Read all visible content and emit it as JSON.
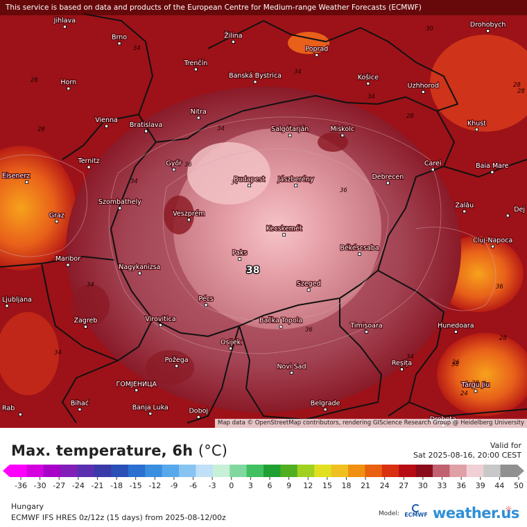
{
  "banner": "This service is based on data and products of the European Centre for Medium-range Weather Forecasts (ECMWF)",
  "attribution": "Map data © OpenStreetMap contributors, rendering GIScience Research Group @ Heidelberg University",
  "cities": [
    {
      "name": "Jihlava",
      "lon": 15.59,
      "lat": 49.4
    },
    {
      "name": "Brno",
      "lon": 16.61,
      "lat": 49.2
    },
    {
      "name": "Žilina",
      "lon": 18.74,
      "lat": 49.22
    },
    {
      "name": "Poprad",
      "lon": 20.3,
      "lat": 49.06
    },
    {
      "name": "Drohobych",
      "lon": 23.5,
      "lat": 49.35
    },
    {
      "name": "Trenčín",
      "lon": 18.04,
      "lat": 48.89
    },
    {
      "name": "Banská Bystrica",
      "lon": 19.15,
      "lat": 48.74
    },
    {
      "name": "Košice",
      "lon": 21.26,
      "lat": 48.72
    },
    {
      "name": "Uzhhorod",
      "lon": 22.29,
      "lat": 48.62
    },
    {
      "name": "Horn",
      "lon": 15.66,
      "lat": 48.66
    },
    {
      "name": "Nitra",
      "lon": 18.09,
      "lat": 48.31
    },
    {
      "name": "Vienna",
      "lon": 16.37,
      "lat": 48.21
    },
    {
      "name": "Bratislava",
      "lon": 17.11,
      "lat": 48.15
    },
    {
      "name": "Salgótarján",
      "lon": 19.8,
      "lat": 48.1
    },
    {
      "name": "Miskolc",
      "lon": 20.78,
      "lat": 48.1
    },
    {
      "name": "Khust",
      "lon": 23.29,
      "lat": 48.17
    },
    {
      "name": "Ternitz",
      "lon": 16.04,
      "lat": 47.72
    },
    {
      "name": "Győr",
      "lon": 17.63,
      "lat": 47.69
    },
    {
      "name": "Carei",
      "lon": 22.47,
      "lat": 47.69
    },
    {
      "name": "Baia Mare",
      "lon": 23.58,
      "lat": 47.66
    },
    {
      "name": "Eisenerz",
      "lon": 14.88,
      "lat": 47.54
    },
    {
      "name": "Budapest",
      "lon": 19.04,
      "lat": 47.5
    },
    {
      "name": "Jászberény",
      "lon": 19.91,
      "lat": 47.5
    },
    {
      "name": "Debrecen",
      "lon": 21.63,
      "lat": 47.53
    },
    {
      "name": "Szombathely",
      "lon": 16.62,
      "lat": 47.23
    },
    {
      "name": "Zalău",
      "lon": 23.06,
      "lat": 47.19
    },
    {
      "name": "Graz",
      "lon": 15.44,
      "lat": 47.07
    },
    {
      "name": "Veszprém",
      "lon": 17.91,
      "lat": 47.09
    },
    {
      "name": "Dej",
      "lon": 23.87,
      "lat": 47.14
    },
    {
      "name": "Kecskemét",
      "lon": 19.69,
      "lat": 46.91
    },
    {
      "name": "Cluj-Napoca",
      "lon": 23.59,
      "lat": 46.77
    },
    {
      "name": "Maribor",
      "lon": 15.65,
      "lat": 46.55
    },
    {
      "name": "Paks",
      "lon": 18.86,
      "lat": 46.62
    },
    {
      "name": "Békéscsaba",
      "lon": 21.1,
      "lat": 46.68
    },
    {
      "name": "Nagykanizsa",
      "lon": 16.99,
      "lat": 46.45
    },
    {
      "name": "Szeged",
      "lon": 20.15,
      "lat": 46.25
    },
    {
      "name": "Ljubljana",
      "lon": 14.51,
      "lat": 46.06
    },
    {
      "name": "Pécs",
      "lon": 18.23,
      "lat": 46.07
    },
    {
      "name": "Virovitica",
      "lon": 17.38,
      "lat": 45.83
    },
    {
      "name": "Zagreb",
      "lon": 15.98,
      "lat": 45.81
    },
    {
      "name": "Bačka Topola",
      "lon": 19.63,
      "lat": 45.81
    },
    {
      "name": "Hunedoara",
      "lon": 22.9,
      "lat": 45.75
    },
    {
      "name": "Timișoara",
      "lon": 21.23,
      "lat": 45.75
    },
    {
      "name": "Osijek",
      "lon": 18.69,
      "lat": 45.55
    },
    {
      "name": "Požega",
      "lon": 17.68,
      "lat": 45.34
    },
    {
      "name": "Reșița",
      "lon": 21.89,
      "lat": 45.3
    },
    {
      "name": "Novi Sad",
      "lon": 19.83,
      "lat": 45.26
    },
    {
      "name": "Târgu Jiu",
      "lon": 23.27,
      "lat": 45.04
    },
    {
      "name": "ГОМЈЕНИЦА",
      "lon": 16.93,
      "lat": 45.05
    },
    {
      "name": "Belgrade",
      "lon": 20.46,
      "lat": 44.82
    },
    {
      "name": "Bihać",
      "lon": 15.87,
      "lat": 44.82
    },
    {
      "name": "Banja Luka",
      "lon": 17.19,
      "lat": 44.77
    },
    {
      "name": "Doboj",
      "lon": 18.09,
      "lat": 44.73
    },
    {
      "name": "Drobeta",
      "lon": 22.66,
      "lat": 44.63
    },
    {
      "name": "Rab",
      "lon": 14.76,
      "lat": 44.76
    }
  ],
  "contour_labels": [
    "30",
    "34",
    "34",
    "28",
    "28",
    "34",
    "28",
    "28",
    "34",
    "34",
    "36",
    "36",
    "34",
    "34",
    "36",
    "34",
    "36",
    "36",
    "28",
    "28",
    "24",
    "26",
    "34",
    "28"
  ],
  "max_value_label": "38",
  "legend": {
    "title": "Max. temperature, 6h",
    "unit": "(°C)",
    "valid_label": "Valid for",
    "valid_time": "Sat 2025-08-16, 20:00 CEST",
    "ticks": [
      "-36",
      "-30",
      "-27",
      "-24",
      "-21",
      "-18",
      "-15",
      "-12",
      "-9",
      "-6",
      "-3",
      "0",
      "3",
      "6",
      "9",
      "12",
      "15",
      "18",
      "21",
      "24",
      "27",
      "30",
      "33",
      "36",
      "39",
      "44",
      "50"
    ],
    "colors": [
      "#ff00ff",
      "#d400e0",
      "#a800c8",
      "#8020b8",
      "#5a30b0",
      "#3a3aa8",
      "#2a50b8",
      "#2b6fd0",
      "#3a8ee0",
      "#58a8ec",
      "#88c4f2",
      "#bfe0f7",
      "#c8f0d8",
      "#80d8a0",
      "#40c060",
      "#20a030",
      "#50b020",
      "#a0d020",
      "#e0e020",
      "#f0c020",
      "#f09010",
      "#e86010",
      "#d83010",
      "#b80c14",
      "#8a0c1a",
      "#c06070",
      "#e0a0a8",
      "#f0d0d4",
      "#c8c8c8",
      "#909090"
    ]
  },
  "region": "Hungary",
  "model_run": "ECMWF IFS HRES 0z/12z (15 days) from 2025-08-12/00z",
  "model_label": "Model:",
  "ecmwf_label": "ECMWF",
  "brand": "weather.us"
}
